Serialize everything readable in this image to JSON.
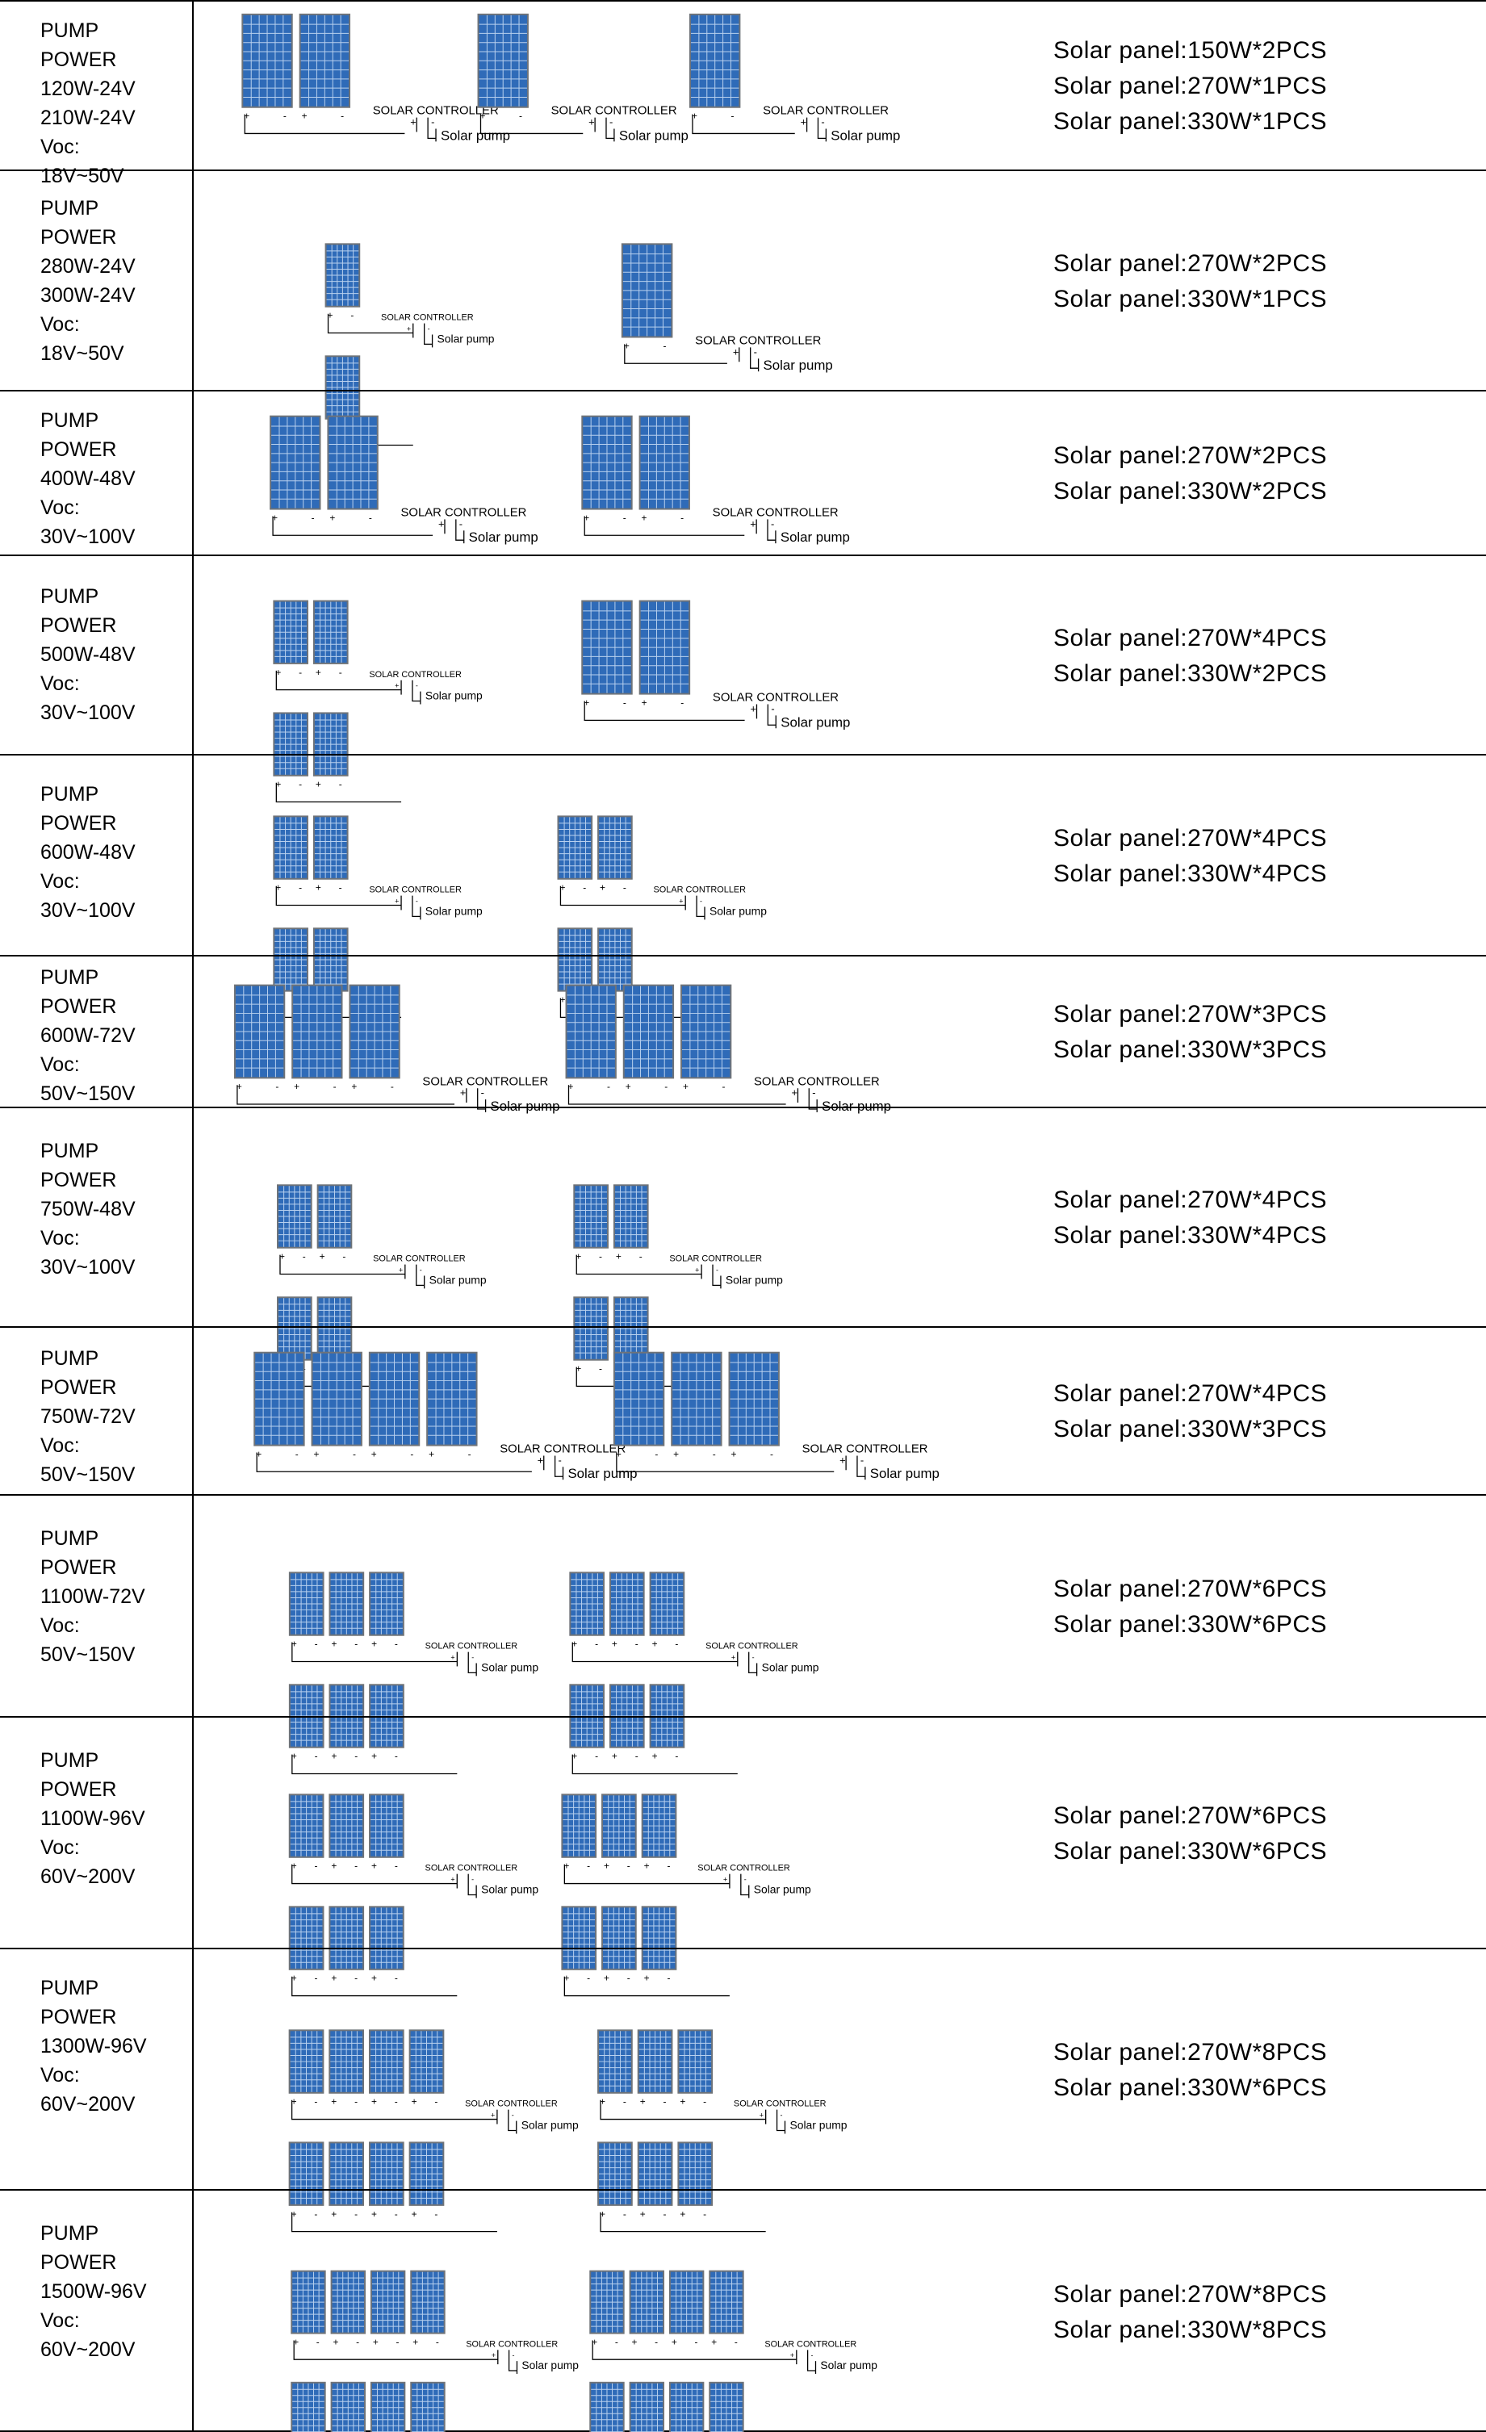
{
  "rows": [
    {
      "spec": [
        "PUMP",
        "POWER",
        "120W-24V",
        "210W-24V",
        "Voc:",
        "18V~50V"
      ],
      "panels": [
        "Solar panel:150W*2PCS",
        "Solar panel:270W*1PCS",
        "Solar panel:330W*1PCS"
      ],
      "diagrams": [
        {
          "type": "single",
          "count": 2,
          "size": "big"
        },
        {
          "type": "single",
          "count": 1,
          "size": "big"
        },
        {
          "type": "single",
          "count": 1,
          "size": "big"
        }
      ]
    },
    {
      "spec": [
        "PUMP",
        "POWER",
        "280W-24V",
        "300W-24V",
        "Voc:",
        "18V~50V"
      ],
      "panels": [
        "Solar panel:270W*2PCS",
        "Solar panel:330W*1PCS"
      ],
      "diagrams": [
        {
          "type": "double",
          "count": 1,
          "size": "small"
        },
        {
          "type": "single",
          "count": 1,
          "size": "big"
        }
      ]
    },
    {
      "spec": [
        "PUMP",
        "POWER",
        "400W-48V",
        "Voc:",
        "30V~100V"
      ],
      "panels": [
        "Solar panel:270W*2PCS",
        "Solar panel:330W*2PCS"
      ],
      "diagrams": [
        {
          "type": "single",
          "count": 2,
          "size": "big"
        },
        {
          "type": "single",
          "count": 2,
          "size": "big"
        }
      ]
    },
    {
      "spec": [
        "PUMP",
        "POWER",
        "500W-48V",
        "Voc:",
        "30V~100V"
      ],
      "panels": [
        "Solar panel:270W*4PCS",
        "Solar panel:330W*2PCS"
      ],
      "diagrams": [
        {
          "type": "double",
          "count": 2,
          "size": "small"
        },
        {
          "type": "single",
          "count": 2,
          "size": "big"
        }
      ]
    },
    {
      "spec": [
        "PUMP",
        "POWER",
        "600W-48V",
        "Voc:",
        "30V~100V"
      ],
      "panels": [
        "Solar panel:270W*4PCS",
        "Solar panel:330W*4PCS"
      ],
      "diagrams": [
        {
          "type": "double",
          "count": 2,
          "size": "small"
        },
        {
          "type": "double",
          "count": 2,
          "size": "small"
        }
      ]
    },
    {
      "spec": [
        "PUMP",
        "POWER",
        "600W-72V",
        "Voc:",
        "50V~150V"
      ],
      "panels": [
        "Solar panel:270W*3PCS",
        "Solar panel:330W*3PCS"
      ],
      "diagrams": [
        {
          "type": "single",
          "count": 3,
          "size": "big"
        },
        {
          "type": "single",
          "count": 3,
          "size": "big"
        }
      ]
    },
    {
      "spec": [
        "PUMP",
        "POWER",
        "750W-48V",
        "Voc:",
        "30V~100V"
      ],
      "panels": [
        "Solar panel:270W*4PCS",
        "Solar panel:330W*4PCS"
      ],
      "diagrams": [
        {
          "type": "double",
          "count": 2,
          "size": "small"
        },
        {
          "type": "double",
          "count": 2,
          "size": "small"
        }
      ]
    },
    {
      "spec": [
        "PUMP",
        "POWER",
        "750W-72V",
        "Voc:",
        "50V~150V"
      ],
      "panels": [
        "Solar panel:270W*4PCS",
        "Solar panel:330W*3PCS"
      ],
      "diagrams": [
        {
          "type": "single",
          "count": 4,
          "size": "big"
        },
        {
          "type": "single",
          "count": 3,
          "size": "big"
        }
      ]
    },
    {
      "spec": [
        "PUMP",
        "POWER",
        "1100W-72V",
        "Voc:",
        "50V~150V"
      ],
      "panels": [
        "Solar panel:270W*6PCS",
        "Solar panel:330W*6PCS"
      ],
      "diagrams": [
        {
          "type": "double",
          "count": 3,
          "size": "small"
        },
        {
          "type": "double",
          "count": 3,
          "size": "small"
        }
      ]
    },
    {
      "spec": [
        "PUMP",
        "POWER",
        "1100W-96V",
        "Voc:",
        "60V~200V"
      ],
      "panels": [
        "Solar panel:270W*6PCS",
        "Solar panel:330W*6PCS"
      ],
      "diagrams": [
        {
          "type": "double",
          "count": 3,
          "size": "small"
        },
        {
          "type": "double",
          "count": 3,
          "size": "small"
        }
      ]
    },
    {
      "spec": [
        "PUMP",
        "POWER",
        "1300W-96V",
        "Voc:",
        "60V~200V"
      ],
      "panels": [
        "Solar panel:270W*8PCS",
        "Solar panel:330W*6PCS"
      ],
      "diagrams": [
        {
          "type": "double",
          "count": 4,
          "size": "small"
        },
        {
          "type": "double",
          "count": 3,
          "size": "small"
        }
      ]
    },
    {
      "spec": [
        "PUMP",
        "POWER",
        "1500W-96V",
        "Voc:",
        "60V~200V"
      ],
      "panels": [
        "Solar panel:270W*8PCS",
        "Solar panel:330W*8PCS"
      ],
      "diagrams": [
        {
          "type": "double",
          "count": 4,
          "size": "small"
        },
        {
          "type": "double",
          "count": 4,
          "size": "small"
        }
      ]
    }
  ],
  "labels": {
    "controller": "SOLAR CONTROLLER",
    "pump": "Solar pump",
    "plus": "+",
    "minus": "-"
  },
  "colors": {
    "cell": "#2f6bb8",
    "cell_grid": "#b8d0ee",
    "frame": "#6f7378",
    "wire": "#000000",
    "border": "#000000"
  }
}
